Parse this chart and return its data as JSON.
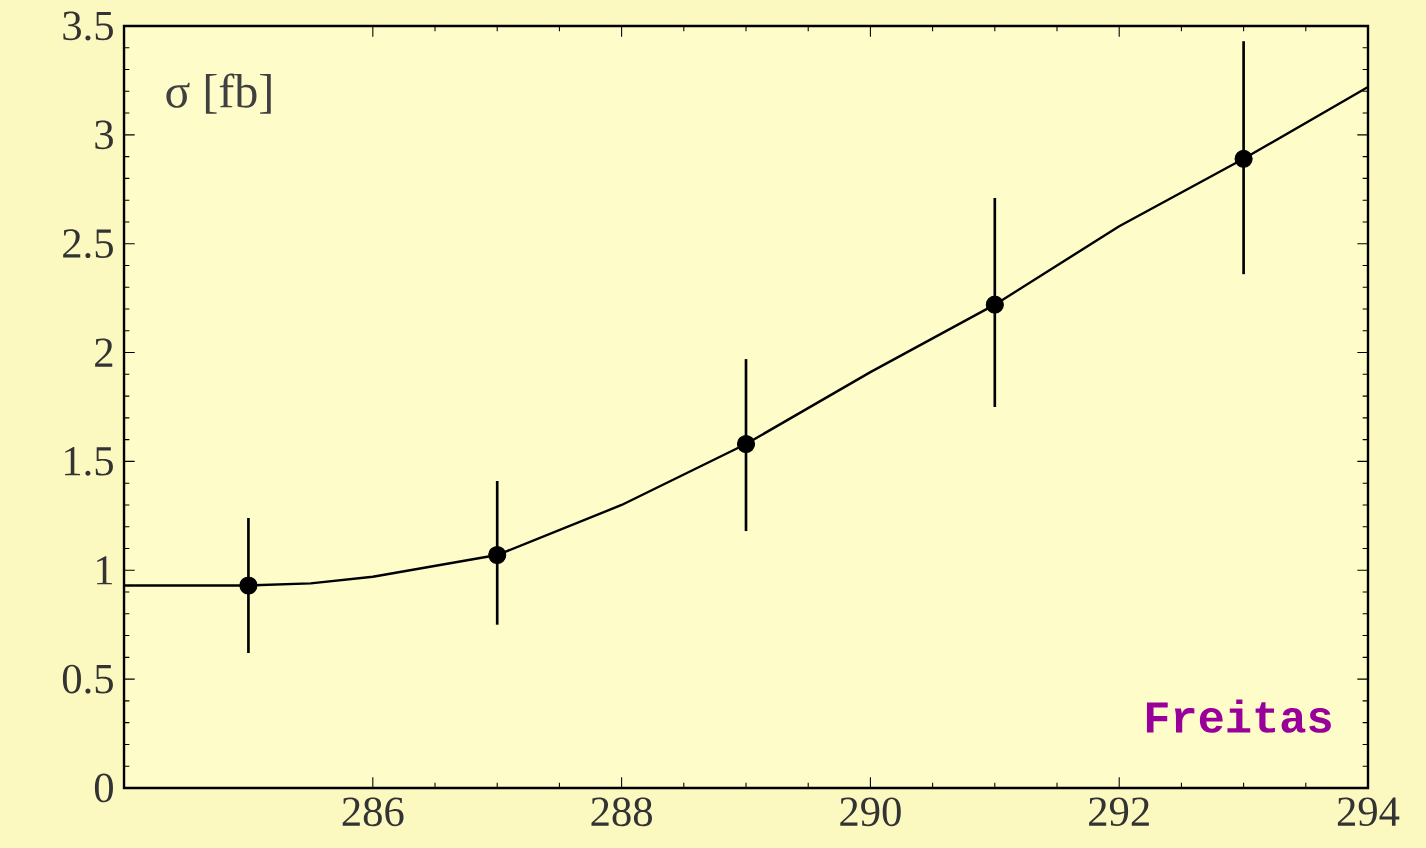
{
  "chart_data": {
    "type": "line",
    "ylabel": "σ [fb]",
    "annotations": [
      "Freitas"
    ],
    "x": [
      285,
      287,
      289,
      291,
      293
    ],
    "series": [
      {
        "type": "scatter",
        "color": "#000000",
        "marker": "circle",
        "values": [
          0.93,
          1.07,
          1.58,
          2.22,
          2.89
        ],
        "errors": [
          [
            0.62,
            1.24
          ],
          [
            0.75,
            1.41
          ],
          [
            1.18,
            1.97
          ],
          [
            1.75,
            2.71
          ],
          [
            2.36,
            3.43
          ]
        ]
      },
      {
        "color": "#000000",
        "marker": "none",
        "line_style": "solid",
        "x": [
          284,
          284.5,
          285,
          285.5,
          286,
          287,
          288,
          289,
          290,
          291,
          292,
          293,
          294
        ],
        "values": [
          0.93,
          0.93,
          0.93,
          0.94,
          0.97,
          1.07,
          1.3,
          1.58,
          1.91,
          2.22,
          2.58,
          2.89,
          3.22
        ]
      }
    ],
    "xlim": [
      284,
      294
    ],
    "ylim": [
      0,
      3.5
    ],
    "xticks": [
      286,
      288,
      290,
      292,
      294
    ],
    "yticks": [
      0,
      0.5,
      1,
      1.5,
      2,
      2.5,
      3,
      3.5
    ],
    "grid": false
  }
}
